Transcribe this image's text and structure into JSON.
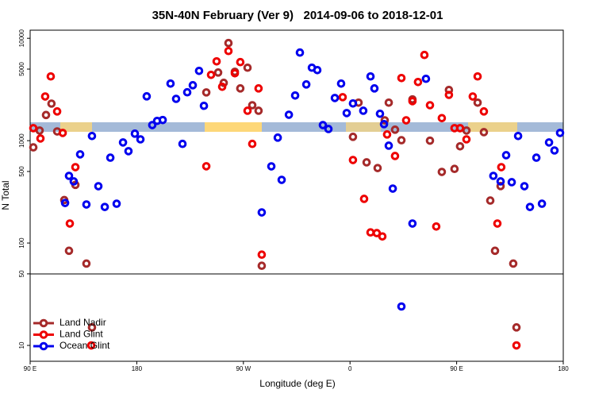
{
  "chart_data": {
    "type": "scatter",
    "title": "35N-40N February (Ver 9)   2014-09-06 to 2018-12-01",
    "x_label": "Longitude (deg E)",
    "y_label": "N Total",
    "log_y": true,
    "legend": "bottom-left",
    "xlim": [
      90,
      540
    ],
    "xticks": [
      {
        "value": 90,
        "label": "90 E"
      },
      180,
      {
        "value": 270,
        "label": "90 W"
      },
      {
        "value": 360,
        "label": "0"
      },
      {
        "value": 450,
        "label": "90 E"
      },
      {
        "value": 540,
        "label": "180"
      }
    ],
    "ylim": [
      7,
      12000
    ],
    "yticks": [
      10000,
      5000,
      1000,
      500,
      100,
      50,
      10
    ],
    "series": [
      {
        "name": "Land Nadir",
        "color": "#a52a2a",
        "x": [
          92.7,
          98,
          103.4,
          108,
          112.8,
          118.8,
          122.8,
          128.2,
          137.5,
          142.2,
          238.7,
          248.7,
          253.4,
          257.4,
          262.8,
          267.4,
          273.5,
          277.5,
          282.8,
          285.5,
          362.5,
          367.2,
          374,
          383.3,
          389.3,
          392.7,
          398,
          403.4,
          412.7,
          427.5,
          437.5,
          443.5,
          448.2,
          452.9,
          458.3,
          467.7,
          473,
          478.4,
          482.4,
          487.1,
          497.8,
          500.5
        ],
        "values": [
          860,
          1255,
          1780,
          2300,
          1230,
          263,
          84,
          370,
          63,
          15,
          2960,
          4630,
          3670,
          8980,
          4710,
          3240,
          5160,
          2220,
          1960,
          60,
          1090,
          2350,
          614,
          540,
          1580,
          2350,
          1280,
          1010,
          2530,
          1000,
          495,
          3130,
          530,
          880,
          1255,
          2350,
          1210,
          260,
          84,
          360,
          63,
          15
        ]
      },
      {
        "name": "Land Glint",
        "color": "#ee0000",
        "x": [
          92.7,
          98.7,
          102.7,
          107.4,
          112.8,
          117.5,
          123.5,
          128.2,
          141.6,
          238.7,
          242.7,
          247.4,
          252.1,
          257.4,
          262.8,
          267.4,
          273.5,
          277.5,
          282.8,
          285.5,
          353.8,
          362.5,
          371.9,
          377.3,
          382.6,
          387.3,
          391.3,
          398,
          403.4,
          407.4,
          412.7,
          417.4,
          422.8,
          427.5,
          432.8,
          437.5,
          443.5,
          448.2,
          452.9,
          458.3,
          463.6,
          467.7,
          473,
          484.4,
          487.7,
          500.5
        ],
        "values": [
          1325,
          1050,
          2700,
          4240,
          1930,
          1190,
          155,
          551,
          10,
          562,
          4390,
          5950,
          3360,
          7510,
          4550,
          5850,
          1960,
          930,
          3240,
          77,
          2660,
          647,
          270,
          127,
          125,
          116,
          1150,
          708,
          4090,
          1580,
          2430,
          3740,
          6870,
          2220,
          145,
          1660,
          2800,
          1325,
          1325,
          1030,
          2700,
          4240,
          1930,
          155,
          551,
          10
        ]
      },
      {
        "name": "Ocean Glint",
        "color": "#0000ee",
        "x": [
          119.5,
          122.8,
          126.8,
          132.2,
          137.5,
          142.2,
          147.6,
          153,
          157.7,
          163,
          168.4,
          173,
          178.4,
          183.1,
          188.4,
          193.1,
          197.2,
          201.9,
          208.5,
          213.2,
          218.6,
          222.6,
          227.3,
          232.6,
          236.7,
          285.5,
          293.6,
          299,
          302.3,
          308.4,
          313.7,
          317.7,
          323.1,
          327.8,
          332.4,
          337.1,
          341.8,
          347.2,
          352.5,
          357.2,
          362.5,
          371.2,
          377.3,
          380.6,
          385.3,
          388.7,
          392.7,
          396.1,
          403.4,
          412.7,
          424.1,
          481,
          487.1,
          491.8,
          496.5,
          501.9,
          507.2,
          511.9,
          517.3,
          522,
          528,
          532.6,
          537.3
        ],
        "values": [
          246,
          453,
          400,
          735,
          238,
          1110,
          359,
          225,
          682,
          242,
          960,
          789,
          1170,
          1030,
          2710,
          1420,
          1560,
          1590,
          3610,
          2560,
          930,
          2970,
          3480,
          4800,
          2190,
          199,
          561,
          1070,
          414,
          1790,
          2760,
          7250,
          3540,
          5160,
          4890,
          1420,
          1300,
          2610,
          3610,
          1860,
          2310,
          1960,
          4240,
          3240,
          1830,
          1450,
          893,
          340,
          24,
          155,
          4020,
          453,
          400,
          721,
          393,
          1110,
          359,
          225,
          682,
          242,
          960,
          802,
          1190
        ]
      }
    ]
  }
}
